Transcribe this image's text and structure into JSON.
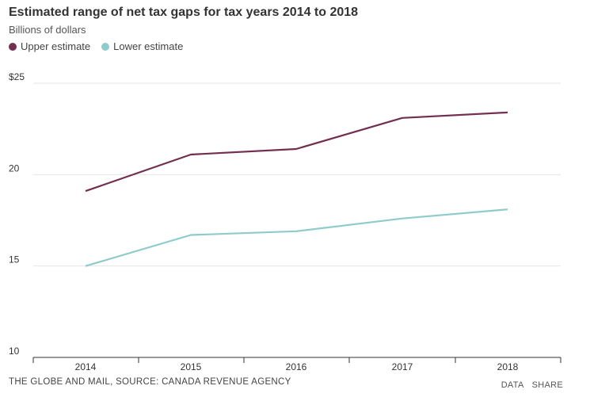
{
  "chart_data": {
    "type": "line",
    "title": "Estimated range of net tax gaps for tax years 2014 to 2018",
    "subtitle": "Billions of dollars",
    "categories": [
      "2014",
      "2015",
      "2016",
      "2017",
      "2018"
    ],
    "series": [
      {
        "name": "Upper estimate",
        "color": "#722f4f",
        "values": [
          19.1,
          21.1,
          21.4,
          23.1,
          23.4
        ]
      },
      {
        "name": "Lower estimate",
        "color": "#8ecbca",
        "values": [
          15.0,
          16.7,
          16.9,
          17.6,
          18.1
        ]
      }
    ],
    "yticks": [
      "$25",
      "20",
      "15",
      "10"
    ],
    "ytick_values": [
      25,
      20,
      15,
      10
    ],
    "ylim": [
      10,
      25
    ],
    "xlabel": "",
    "ylabel": "Billions of dollars",
    "grid": true,
    "legend_position": "top-left"
  },
  "footer": {
    "source": "THE GLOBE AND MAIL, SOURCE: CANADA REVENUE AGENCY",
    "data_label": "DATA",
    "share_label": "SHARE"
  },
  "colors": {
    "upper": "#722f4f",
    "lower": "#8ecbca",
    "grid": "#e6e6e6",
    "axis": "#333333"
  }
}
